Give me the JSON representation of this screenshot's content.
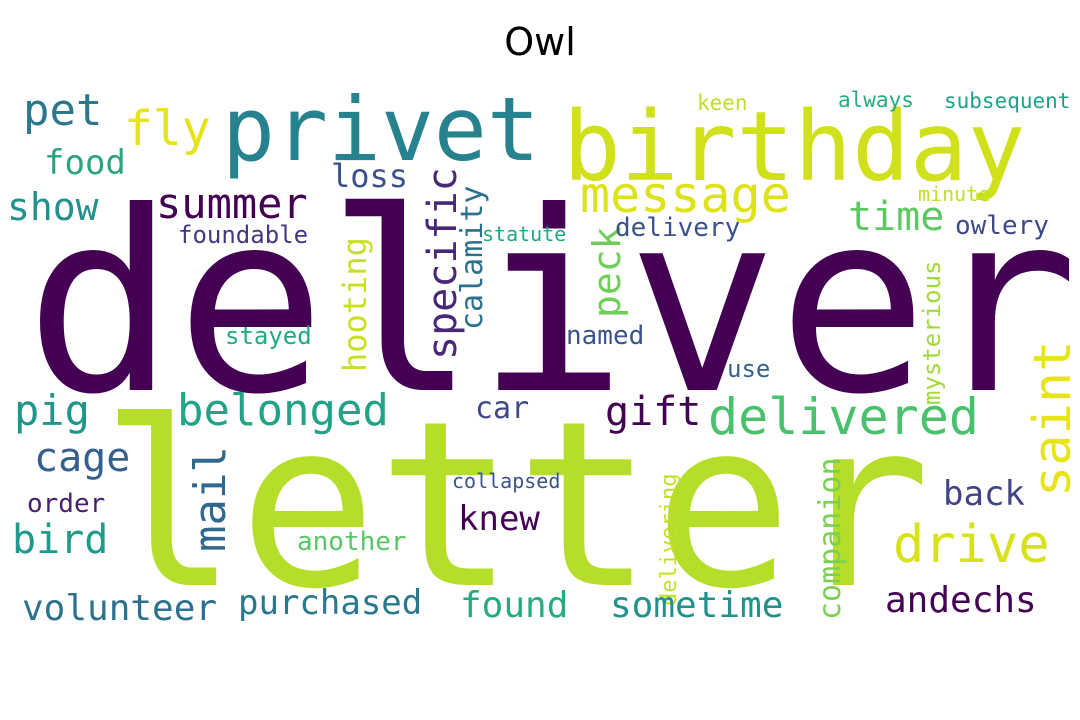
{
  "title": "Owl",
  "words": [
    {
      "text": "deliver",
      "color": "#440154"
    },
    {
      "text": "letter",
      "color": "#b5de2b"
    },
    {
      "text": "birthday",
      "color": "#d0e11c"
    },
    {
      "text": "privet",
      "color": "#26828e"
    },
    {
      "text": "message",
      "color": "#dde318"
    },
    {
      "text": "pet",
      "color": "#2a788e"
    },
    {
      "text": "fly",
      "color": "#e5e419"
    },
    {
      "text": "food",
      "color": "#2ea37f"
    },
    {
      "text": "summer",
      "color": "#440154"
    },
    {
      "text": "loss",
      "color": "#3b518b"
    },
    {
      "text": "show",
      "color": "#21918c"
    },
    {
      "text": "foundable",
      "color": "#453882"
    },
    {
      "text": "specific",
      "color": "#482878"
    },
    {
      "text": "calamity",
      "color": "#2c728e"
    },
    {
      "text": "hooting",
      "color": "#c8e020"
    },
    {
      "text": "peck",
      "color": "#6ece58"
    },
    {
      "text": "time",
      "color": "#5ec962"
    },
    {
      "text": "owlery",
      "color": "#3e4989"
    },
    {
      "text": "delivery",
      "color": "#3b528b"
    },
    {
      "text": "statute",
      "color": "#22a884"
    },
    {
      "text": "minute",
      "color": "#c0df25"
    },
    {
      "text": "keen",
      "color": "#bddf26"
    },
    {
      "text": "always",
      "color": "#25ab82"
    },
    {
      "text": "subsequent",
      "color": "#1fa088"
    },
    {
      "text": "mysterious",
      "color": "#a0da39"
    },
    {
      "text": "stayed",
      "color": "#23a983"
    },
    {
      "text": "named",
      "color": "#3b528b"
    },
    {
      "text": "use",
      "color": "#33638d"
    },
    {
      "text": "saint",
      "color": "#e7e419"
    },
    {
      "text": "pig",
      "color": "#1f968b"
    },
    {
      "text": "belonged",
      "color": "#20a386"
    },
    {
      "text": "car",
      "color": "#3e4989"
    },
    {
      "text": "gift",
      "color": "#440154"
    },
    {
      "text": "delivered",
      "color": "#4ac16d"
    },
    {
      "text": "cage",
      "color": "#355f8d"
    },
    {
      "text": "mail",
      "color": "#31688e"
    },
    {
      "text": "companion",
      "color": "#7ad151"
    },
    {
      "text": "delivering",
      "color": "#c2df23"
    },
    {
      "text": "back",
      "color": "#414487"
    },
    {
      "text": "order",
      "color": "#481f70"
    },
    {
      "text": "collapsed",
      "color": "#3a548c"
    },
    {
      "text": "knew",
      "color": "#440154"
    },
    {
      "text": "drive",
      "color": "#d8e219"
    },
    {
      "text": "bird",
      "color": "#1e9b8a"
    },
    {
      "text": "another",
      "color": "#58c765"
    },
    {
      "text": "volunteer",
      "color": "#2c728e"
    },
    {
      "text": "purchased",
      "color": "#2a788e"
    },
    {
      "text": "found",
      "color": "#25ab82"
    },
    {
      "text": "sometime",
      "color": "#21918c"
    },
    {
      "text": "andechs",
      "color": "#440154"
    }
  ]
}
